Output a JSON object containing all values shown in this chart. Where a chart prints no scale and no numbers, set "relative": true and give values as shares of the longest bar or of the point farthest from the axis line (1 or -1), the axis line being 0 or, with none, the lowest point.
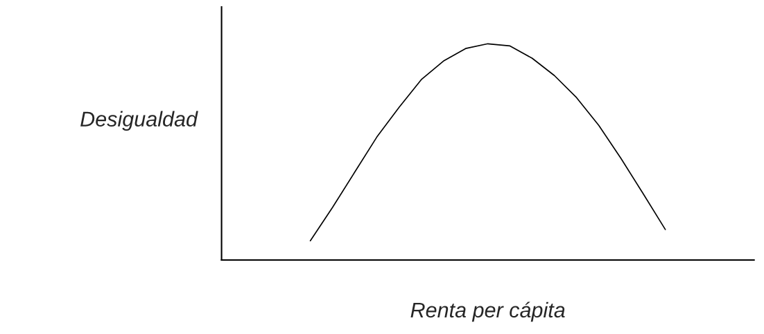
{
  "chart_data": {
    "type": "line",
    "relative": true,
    "xlabel": "Renta per cápita",
    "ylabel": "Desigualdad",
    "categories": [
      null,
      null,
      null,
      null,
      null,
      null,
      null,
      null,
      null,
      null,
      null,
      null,
      null,
      null,
      null,
      null,
      null
    ],
    "series": [
      {
        "color": "#000000",
        "values": [
          0.089,
          0.243,
          0.406,
          0.569,
          0.706,
          0.834,
          0.92,
          0.978,
          1,
          0.99,
          0.933,
          0.853,
          0.751,
          0.623,
          0.47,
          0.307,
          0.141
        ]
      }
    ],
    "grid": false,
    "legend": false
  }
}
